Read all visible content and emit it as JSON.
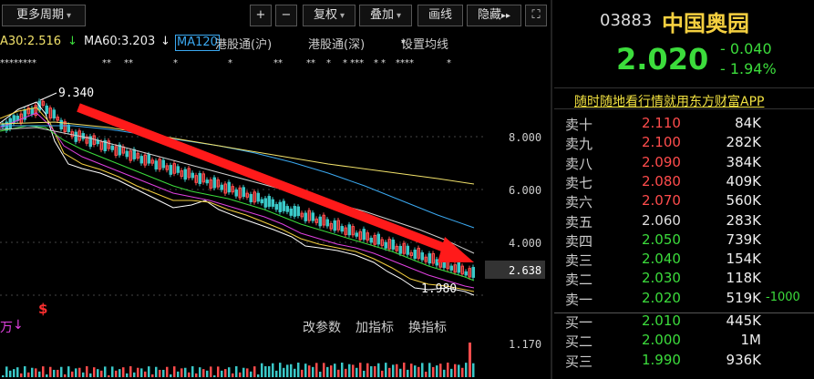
{
  "toolbar": {
    "period_label": "更多周期",
    "zoom_in": "+",
    "zoom_out": "−",
    "restore_label": "复权",
    "overlay_label": "叠加",
    "draw_label": "画线",
    "hide_label": "隐藏",
    "play": "▸▸",
    "fullscreen": "⛶"
  },
  "ma_row": {
    "ma30": "A30:2.516",
    "ma60": "MA60:3.203",
    "ma120": "MA120",
    "hk_sh": "港股通(沪)",
    "hk_sz": "港股通(深)",
    "settings": "设置均线"
  },
  "stars": [
    "********",
    "**",
    "**",
    "*",
    "*",
    "**",
    "**",
    "*",
    "* ***",
    "*",
    "*",
    "****",
    "*"
  ],
  "chart": {
    "high_label": "9.340",
    "low_label": "1.980",
    "price_ticks": [
      "8.000",
      "6.000",
      "4.000",
      "2.638"
    ],
    "marker": "$"
  },
  "volume_bar": {
    "arrow": "↓",
    "label": "万",
    "change_params": "改参数",
    "add_indicator": "加指标",
    "switch_indicator": "换指标",
    "vol_tick": "1.170"
  },
  "quote": {
    "code": "03883",
    "name": "中国奥园",
    "price": "2.020",
    "change": "- 0.040",
    "change_pct": "- 1.94%",
    "promo": "随时随地看行情就用东方财富APP"
  },
  "order_book": {
    "asks": [
      {
        "label": "卖十",
        "price": "2.110",
        "volume": "84K",
        "color": "#ff4c4c"
      },
      {
        "label": "卖九",
        "price": "2.100",
        "volume": "282K",
        "color": "#ff4c4c"
      },
      {
        "label": "卖八",
        "price": "2.090",
        "volume": "384K",
        "color": "#ff4c4c"
      },
      {
        "label": "卖七",
        "price": "2.080",
        "volume": "409K",
        "color": "#ff4c4c"
      },
      {
        "label": "卖六",
        "price": "2.070",
        "volume": "560K",
        "color": "#ff4c4c"
      },
      {
        "label": "卖五",
        "price": "2.060",
        "volume": "283K",
        "color": "#dddddd"
      },
      {
        "label": "卖四",
        "price": "2.050",
        "volume": "739K",
        "color": "#3cdc3c"
      },
      {
        "label": "卖三",
        "price": "2.040",
        "volume": "154K",
        "color": "#3cdc3c"
      },
      {
        "label": "卖二",
        "price": "2.030",
        "volume": "118K",
        "color": "#3cdc3c"
      },
      {
        "label": "卖一",
        "price": "2.020",
        "volume": "519K",
        "color": "#3cdc3c",
        "extra": "-1000"
      }
    ],
    "bids": [
      {
        "label": "买一",
        "price": "2.010",
        "volume": "445K",
        "color": "#3cdc3c"
      },
      {
        "label": "买二",
        "price": "2.000",
        "volume": "1M",
        "color": "#3cdc3c"
      },
      {
        "label": "买三",
        "price": "1.990",
        "volume": "936K",
        "color": "#3cdc3c"
      }
    ]
  },
  "colors": {
    "up": "#ff4c4c",
    "down": "#3cdc3c",
    "accent": "#f5d040",
    "trend_arrow": "#ff1a1a"
  }
}
